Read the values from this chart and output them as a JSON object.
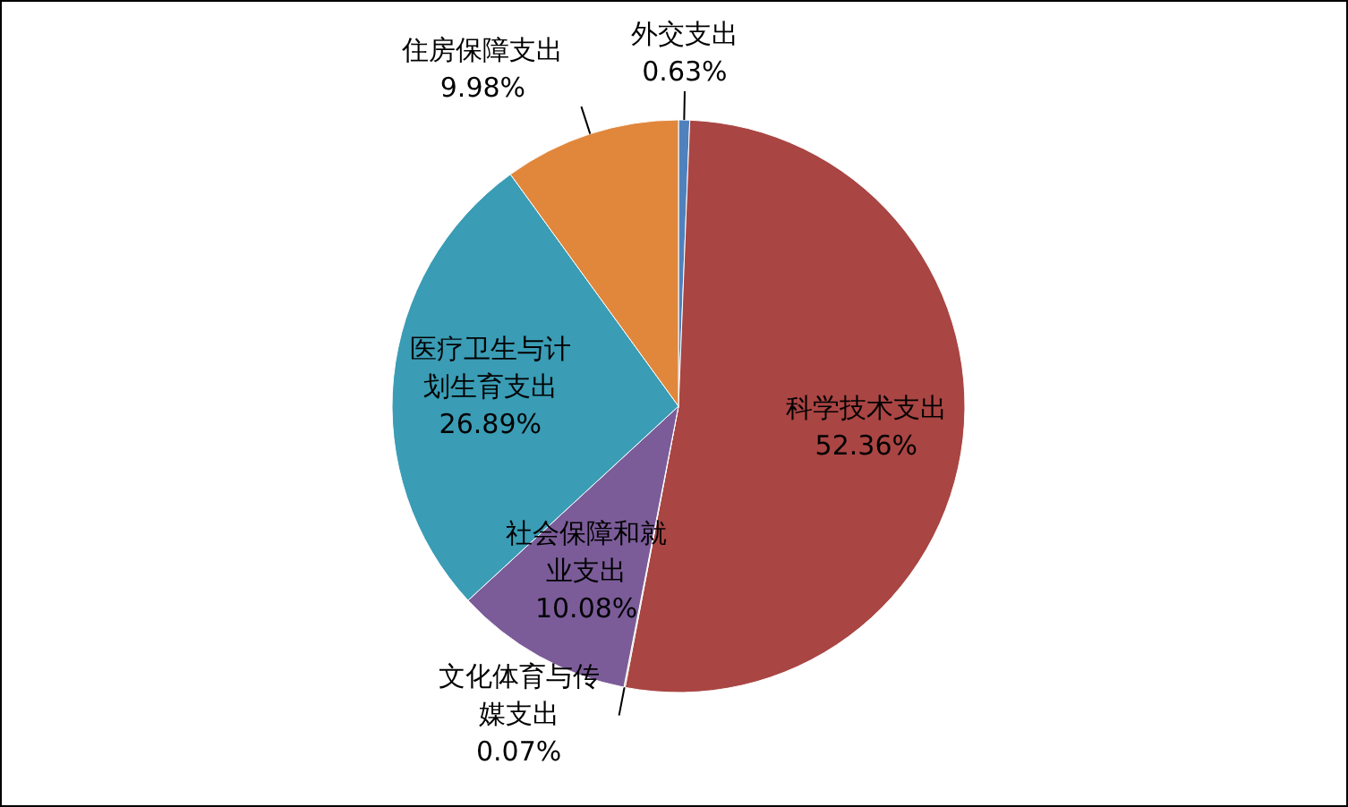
{
  "chart_data": {
    "type": "pie",
    "categories": [
      "外交支出",
      "科学技术支出",
      "文化体育与传媒支出",
      "社会保障和就业支出",
      "医疗卫生与计划生育支出",
      "住房保障支出"
    ],
    "values": [
      0.63,
      52.36,
      0.07,
      10.08,
      26.89,
      9.98
    ],
    "value_labels": [
      "0.63%",
      "52.36%",
      "0.07%",
      "10.08%",
      "26.89%",
      "9.98%"
    ],
    "colors": [
      "#4f81bd",
      "#a94543",
      "#9bbb59",
      "#7b5c99",
      "#3a9cb5",
      "#e0873c"
    ]
  }
}
